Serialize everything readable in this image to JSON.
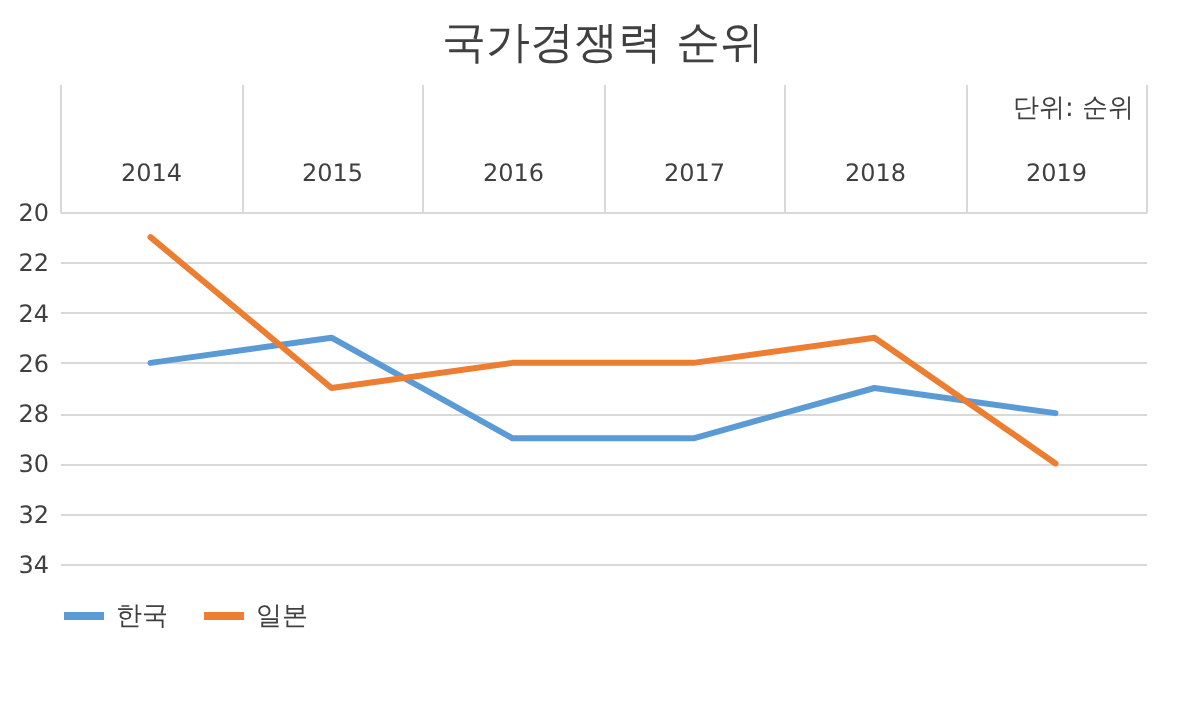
{
  "chart_data": {
    "type": "line",
    "title": "국가경쟁력 순위",
    "categories": [
      "2014",
      "2015",
      "2016",
      "2017",
      "2018",
      "2019"
    ],
    "series": [
      {
        "name": "한국",
        "color": "#5b9bd5",
        "values": [
          26,
          25,
          29,
          29,
          27,
          28
        ]
      },
      {
        "name": "일본",
        "color": "#ed7d31",
        "values": [
          21,
          27,
          26,
          26,
          25,
          30
        ]
      }
    ],
    "ylim": [
      34,
      20
    ],
    "yticks": [
      20,
      22,
      24,
      26,
      28,
      30,
      32,
      34
    ],
    "grid": "y",
    "legend": "bottom",
    "line_style": "solid",
    "marker": "none",
    "annotations": [
      "단위: 순위"
    ]
  }
}
